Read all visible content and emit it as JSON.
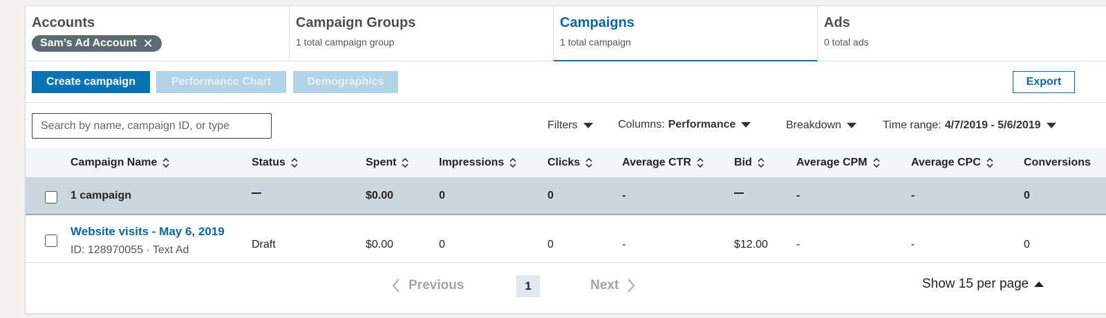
{
  "tabs": {
    "accounts": {
      "title": "Accounts",
      "chip_label": "Sam’s Ad Account",
      "chip_close": "✕"
    },
    "campaign_groups": {
      "title": "Campaign Groups",
      "subtitle": "1 total campaign group"
    },
    "campaigns": {
      "title": "Campaigns",
      "subtitle": "1 total campaign"
    },
    "ads": {
      "title": "Ads",
      "subtitle": "0 total ads"
    }
  },
  "toolbar": {
    "create_label": "Create campaign",
    "performance_label": "Performance Chart",
    "demographics_label": "Demographics",
    "export_label": "Export"
  },
  "filters": {
    "search_placeholder": "Search by name, campaign ID, or type",
    "filters_label": "Filters",
    "columns_label": "Columns:",
    "columns_value": "Performance",
    "breakdown_label": "Breakdown",
    "time_range_label": "Time range:",
    "time_range_value": "4/7/2019 - 5/6/2019"
  },
  "table": {
    "columns": [
      "Campaign Name",
      "Status",
      "Spent",
      "Impressions",
      "Clicks",
      "Average CTR",
      "Bid",
      "Average CPM",
      "Average CPC",
      "Conversions"
    ],
    "summary": {
      "name": "1 campaign",
      "spent": "$0.00",
      "impressions": "0",
      "clicks": "0",
      "avg_ctr": "-",
      "avg_cpm": "-",
      "avg_cpc": "-",
      "conversions": "0"
    },
    "rows": [
      {
        "name": "Website visits - May 6, 2019",
        "meta": "ID: 128970055 · Text Ad",
        "status": "Draft",
        "spent": "$0.00",
        "impressions": "0",
        "clicks": "0",
        "avg_ctr": "-",
        "bid": "$12.00",
        "avg_cpm": "-",
        "avg_cpc": "-",
        "conversions": "0"
      }
    ]
  },
  "pagination": {
    "previous_label": "Previous",
    "current_page": "1",
    "next_label": "Next",
    "per_page_label": "Show 15 per page"
  },
  "colors": {
    "accent": "#0a73b5",
    "summary_row": "#ccd6de",
    "header_row": "#f3f6f8"
  }
}
